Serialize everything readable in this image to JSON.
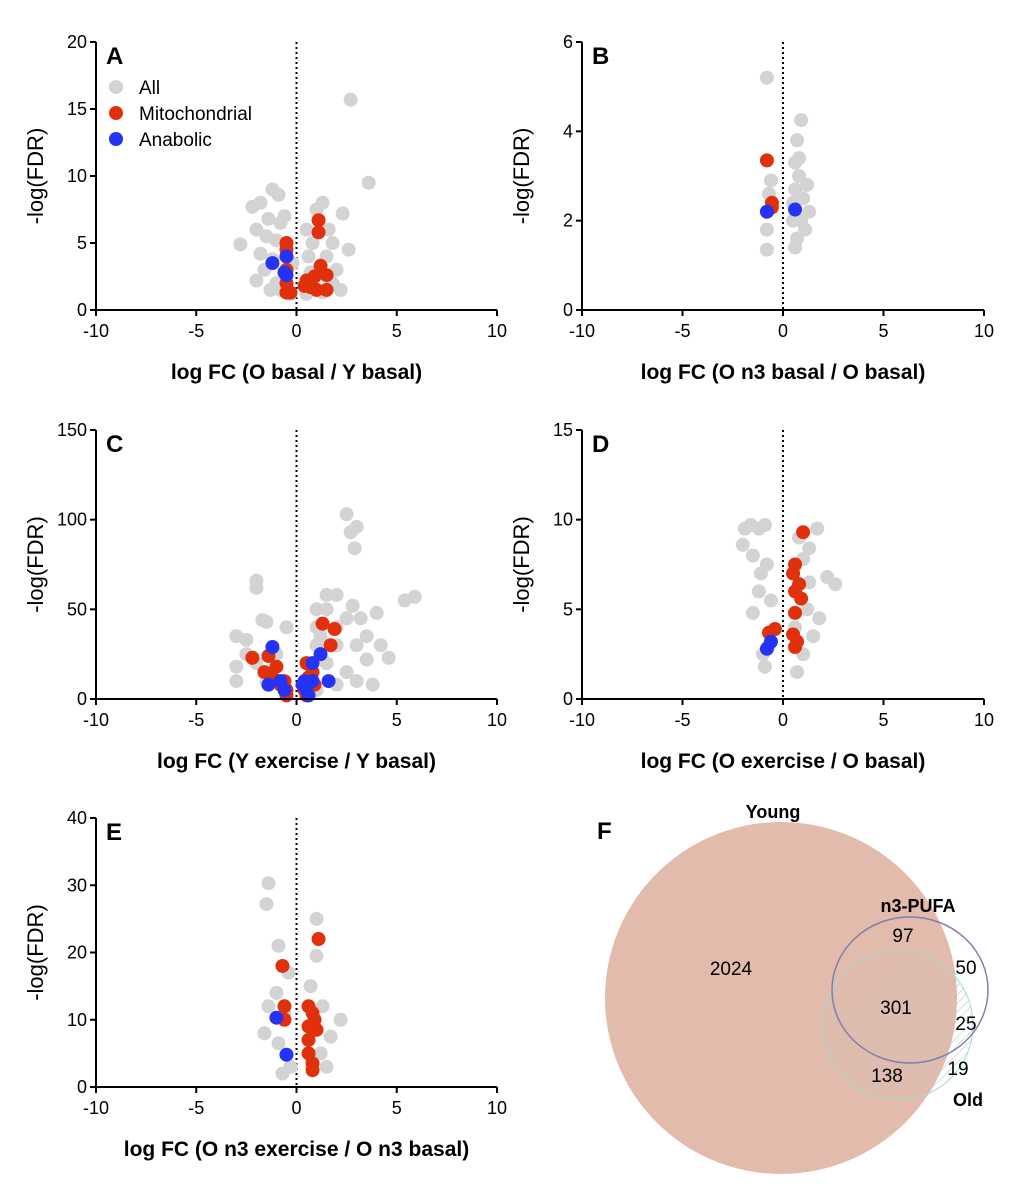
{
  "colors": {
    "all": "#d3d3d3",
    "mitochondrial": "#e0300c",
    "anabolic": "#2433f5",
    "young_fill": "#e3bbad",
    "pufa_stroke": "#7f7fae",
    "old_stroke": "#9fd0c8"
  },
  "legend": [
    {
      "label": "All",
      "key": "all"
    },
    {
      "label": "Mitochondrial",
      "key": "mitochondrial"
    },
    {
      "label": "Anabolic",
      "key": "anabolic"
    }
  ],
  "chart_data": [
    {
      "type": "scatter",
      "panel": "A",
      "xlabel": "log FC (O basal / Y basal)",
      "ylabel": "-log(FDR)",
      "xlim": [
        -10,
        10
      ],
      "ylim": [
        0,
        20
      ],
      "xticks": [
        "-10",
        "-5",
        "0",
        "5",
        "10"
      ],
      "yticks": [
        "0",
        "5",
        "10",
        "15",
        "20"
      ],
      "all": [
        [
          2.7,
          15.7
        ],
        [
          3.6,
          9.5
        ],
        [
          -2.8,
          4.9
        ],
        [
          -2.2,
          7.7
        ],
        [
          -1.2,
          9.0
        ],
        [
          -0.9,
          8.6
        ],
        [
          -1.8,
          8.0
        ],
        [
          1.0,
          7.5
        ],
        [
          1.3,
          8.0
        ],
        [
          2.3,
          7.2
        ],
        [
          1.8,
          5.0
        ],
        [
          -1.0,
          5.2
        ],
        [
          -1.6,
          3.0
        ],
        [
          -2.0,
          6.0
        ],
        [
          2.6,
          4.5
        ],
        [
          2.0,
          3.0
        ],
        [
          1.5,
          4.0
        ],
        [
          -1.3,
          1.5
        ],
        [
          -0.8,
          6.5
        ],
        [
          -1.5,
          5.5
        ],
        [
          -0.3,
          1.2
        ],
        [
          0.5,
          1.2
        ],
        [
          0.6,
          4.0
        ],
        [
          0.5,
          6.0
        ],
        [
          1.8,
          2.0
        ],
        [
          2.2,
          1.5
        ],
        [
          -2.0,
          2.2
        ],
        [
          -1.0,
          2.0
        ],
        [
          -1.8,
          4.2
        ],
        [
          -0.6,
          7.0
        ],
        [
          0.7,
          2.8
        ],
        [
          1.3,
          1.3
        ],
        [
          -0.8,
          1.5
        ],
        [
          1.6,
          6.0
        ],
        [
          -0.2,
          3.5
        ],
        [
          -1.2,
          3.8
        ],
        [
          0.8,
          5.0
        ],
        [
          -1.4,
          6.8
        ]
      ],
      "mitochondrial": [
        [
          -0.5,
          5.0
        ],
        [
          -0.5,
          4.5
        ],
        [
          -0.5,
          4.0
        ],
        [
          -0.5,
          3.0
        ],
        [
          -0.5,
          2.0
        ],
        [
          -0.5,
          1.3
        ],
        [
          -0.3,
          1.3
        ],
        [
          1.1,
          6.7
        ],
        [
          1.1,
          5.8
        ],
        [
          0.9,
          2.5
        ],
        [
          1.5,
          2.6
        ],
        [
          1.2,
          3.3
        ],
        [
          0.7,
          1.7
        ],
        [
          1.5,
          1.5
        ],
        [
          1.0,
          1.5
        ],
        [
          0.4,
          1.8
        ],
        [
          0.5,
          2.2
        ]
      ],
      "anabolic": [
        [
          -1.2,
          3.5
        ],
        [
          -0.5,
          4.0
        ],
        [
          -0.6,
          2.8
        ],
        [
          -0.5,
          2.6
        ]
      ]
    },
    {
      "type": "scatter",
      "panel": "B",
      "xlabel": "log FC (O n3 basal / O basal)",
      "ylabel": "-log(FDR)",
      "xlim": [
        -10,
        10
      ],
      "ylim": [
        0,
        6
      ],
      "xticks": [
        "-10",
        "-5",
        "0",
        "5",
        "10"
      ],
      "yticks": [
        "0",
        "2",
        "4",
        "6"
      ],
      "all": [
        [
          -0.8,
          5.2
        ],
        [
          -0.6,
          2.9
        ],
        [
          -0.7,
          2.6
        ],
        [
          -0.8,
          1.8
        ],
        [
          -0.8,
          1.35
        ],
        [
          0.9,
          4.25
        ],
        [
          0.7,
          3.8
        ],
        [
          0.6,
          3.3
        ],
        [
          0.8,
          3.0
        ],
        [
          0.6,
          2.7
        ],
        [
          1.0,
          2.5
        ],
        [
          0.5,
          2.0
        ],
        [
          0.9,
          2.0
        ],
        [
          1.3,
          2.2
        ],
        [
          0.7,
          1.6
        ],
        [
          0.6,
          1.4
        ],
        [
          1.1,
          1.8
        ],
        [
          0.5,
          2.4
        ],
        [
          0.8,
          3.4
        ],
        [
          1.2,
          2.8
        ]
      ],
      "mitochondrial": [
        [
          -0.8,
          3.35
        ],
        [
          -0.55,
          2.4
        ],
        [
          -0.55,
          2.3
        ]
      ],
      "anabolic": [
        [
          -0.8,
          2.2
        ],
        [
          0.6,
          2.25
        ]
      ]
    },
    {
      "type": "scatter",
      "panel": "C",
      "xlabel": "log FC (Y exercise / Y basal)",
      "ylabel": "-log(FDR)",
      "xlim": [
        -10,
        10
      ],
      "ylim": [
        0,
        150
      ],
      "xticks": [
        "-10",
        "-5",
        "0",
        "5",
        "10"
      ],
      "yticks": [
        "0",
        "50",
        "100",
        "150"
      ],
      "all": [
        [
          2.5,
          103
        ],
        [
          3.0,
          96
        ],
        [
          2.7,
          93
        ],
        [
          2.9,
          84
        ],
        [
          5.4,
          55
        ],
        [
          5.9,
          57
        ],
        [
          -2.0,
          66
        ],
        [
          -2.0,
          62
        ],
        [
          -1.7,
          44
        ],
        [
          -1.5,
          43
        ],
        [
          -3.0,
          35
        ],
        [
          -2.5,
          33
        ],
        [
          4,
          48
        ],
        [
          3.5,
          35
        ],
        [
          4.6,
          23
        ],
        [
          3.5,
          22
        ],
        [
          1.5,
          58
        ],
        [
          2.0,
          58
        ],
        [
          1.5,
          50
        ],
        [
          1.0,
          40
        ],
        [
          2.0,
          40
        ],
        [
          2.5,
          45
        ],
        [
          1.0,
          30
        ],
        [
          2.0,
          30
        ],
        [
          3.0,
          30
        ],
        [
          -0.5,
          40
        ],
        [
          -1.0,
          25
        ],
        [
          -2.0,
          20
        ],
        [
          -3.0,
          10
        ],
        [
          -1.5,
          10
        ],
        [
          1.5,
          20
        ],
        [
          2.5,
          15
        ],
        [
          3.0,
          10
        ],
        [
          3.8,
          8
        ],
        [
          1.0,
          5
        ],
        [
          -0.5,
          5
        ],
        [
          2.0,
          8
        ],
        [
          -2.5,
          25
        ],
        [
          4.2,
          30
        ],
        [
          3.2,
          45
        ],
        [
          1.0,
          50
        ],
        [
          -3.0,
          18
        ],
        [
          1.2,
          35
        ],
        [
          2.8,
          52
        ]
      ],
      "mitochondrial": [
        [
          1.3,
          42
        ],
        [
          1.9,
          39
        ],
        [
          1.7,
          30
        ],
        [
          -2.2,
          23
        ],
        [
          -1.4,
          24
        ],
        [
          -1.6,
          15
        ],
        [
          -1.2,
          12
        ],
        [
          -0.8,
          8
        ],
        [
          -0.5,
          5
        ],
        [
          -0.5,
          2
        ],
        [
          0.5,
          20
        ],
        [
          0.8,
          15
        ],
        [
          0.6,
          12
        ],
        [
          0.4,
          5
        ],
        [
          0.5,
          2
        ],
        [
          0.9,
          8
        ],
        [
          -1.0,
          18
        ],
        [
          -0.6,
          10
        ]
      ],
      "anabolic": [
        [
          -1.2,
          29
        ],
        [
          0.8,
          20
        ],
        [
          1.2,
          25
        ],
        [
          -0.8,
          10
        ],
        [
          -1.4,
          8
        ],
        [
          -0.6,
          5
        ],
        [
          0.4,
          10
        ],
        [
          0.8,
          10
        ],
        [
          1.6,
          10
        ],
        [
          0.5,
          5
        ],
        [
          0.6,
          2
        ],
        [
          0.3,
          8
        ]
      ]
    },
    {
      "type": "scatter",
      "panel": "D",
      "xlabel": "log FC (O exercise / O basal)",
      "ylabel": "-log(FDR)",
      "xlim": [
        -10,
        10
      ],
      "ylim": [
        0,
        15
      ],
      "xticks": [
        "-10",
        "-5",
        "0",
        "5",
        "10"
      ],
      "yticks": [
        "0",
        "5",
        "10",
        "15"
      ],
      "all": [
        [
          -1.9,
          9.5
        ],
        [
          -1.6,
          9.7
        ],
        [
          -1.2,
          9.5
        ],
        [
          -0.9,
          9.7
        ],
        [
          -2.0,
          8.6
        ],
        [
          -1.5,
          8.0
        ],
        [
          -0.8,
          7.5
        ],
        [
          -1.2,
          6.0
        ],
        [
          -0.6,
          5.5
        ],
        [
          -1.5,
          4.8
        ],
        [
          -0.7,
          3.0
        ],
        [
          -1.0,
          2.5
        ],
        [
          0.8,
          9.0
        ],
        [
          1.7,
          9.5
        ],
        [
          1.3,
          8.4
        ],
        [
          2.6,
          6.4
        ],
        [
          2.2,
          6.8
        ],
        [
          1.2,
          5.0
        ],
        [
          0.6,
          4.0
        ],
        [
          1.0,
          2.5
        ],
        [
          0.7,
          1.5
        ],
        [
          1.5,
          3.5
        ],
        [
          1.8,
          4.5
        ],
        [
          -0.9,
          1.8
        ],
        [
          1.3,
          6.5
        ],
        [
          -1.1,
          7.0
        ],
        [
          1.0,
          7.8
        ]
      ],
      "mitochondrial": [
        [
          1.0,
          9.3
        ],
        [
          0.6,
          7.5
        ],
        [
          0.5,
          7.0
        ],
        [
          0.8,
          6.4
        ],
        [
          0.6,
          6.0
        ],
        [
          0.9,
          5.6
        ],
        [
          0.6,
          4.8
        ],
        [
          0.5,
          3.6
        ],
        [
          0.6,
          2.9
        ],
        [
          0.7,
          3.2
        ],
        [
          -0.7,
          3.7
        ],
        [
          -0.4,
          3.9
        ]
      ],
      "anabolic": [
        [
          -0.6,
          3.2
        ],
        [
          -0.8,
          2.8
        ]
      ]
    },
    {
      "type": "scatter",
      "panel": "E",
      "xlabel": "log FC (O n3 exercise / O n3 basal)",
      "ylabel": "-log(FDR)",
      "xlim": [
        -10,
        10
      ],
      "ylim": [
        0,
        40
      ],
      "xticks": [
        "-10",
        "-5",
        "0",
        "5",
        "10"
      ],
      "yticks": [
        "0",
        "10",
        "20",
        "30",
        "40"
      ],
      "all": [
        [
          -1.4,
          30.3
        ],
        [
          -1.5,
          27.2
        ],
        [
          -0.9,
          21
        ],
        [
          1.0,
          25
        ],
        [
          1.0,
          19.5
        ],
        [
          -1.0,
          14
        ],
        [
          -0.6,
          11
        ],
        [
          -1.4,
          12
        ],
        [
          -0.3,
          3
        ],
        [
          2.2,
          10
        ],
        [
          1.7,
          7.5
        ],
        [
          1.3,
          12
        ],
        [
          1.2,
          5
        ],
        [
          -1.6,
          8
        ],
        [
          -0.9,
          6.5
        ],
        [
          -0.4,
          17
        ],
        [
          0.7,
          15
        ],
        [
          0.8,
          4
        ],
        [
          1.5,
          3
        ],
        [
          -0.7,
          2
        ],
        [
          0.9,
          9
        ]
      ],
      "mitochondrial": [
        [
          1.1,
          22
        ],
        [
          -0.7,
          18
        ],
        [
          -0.6,
          12
        ],
        [
          -0.6,
          10
        ],
        [
          0.6,
          12
        ],
        [
          0.8,
          11
        ],
        [
          0.9,
          10
        ],
        [
          0.6,
          9
        ],
        [
          1.0,
          8.5
        ],
        [
          0.6,
          7
        ],
        [
          0.6,
          5
        ],
        [
          0.8,
          3.5
        ],
        [
          0.8,
          2.5
        ]
      ],
      "anabolic": [
        [
          -1.0,
          10.3
        ],
        [
          -0.5,
          4.8
        ]
      ]
    }
  ],
  "venn": {
    "panel": "F",
    "sets": {
      "young": "Young",
      "pufa": "n3-PUFA",
      "old": "Old"
    },
    "regions": {
      "young_only": "2024",
      "young_pufa": "97",
      "pufa_only": "50",
      "all_three": "301",
      "pufa_old": "25",
      "young_old": "138",
      "old_only": "19"
    }
  }
}
